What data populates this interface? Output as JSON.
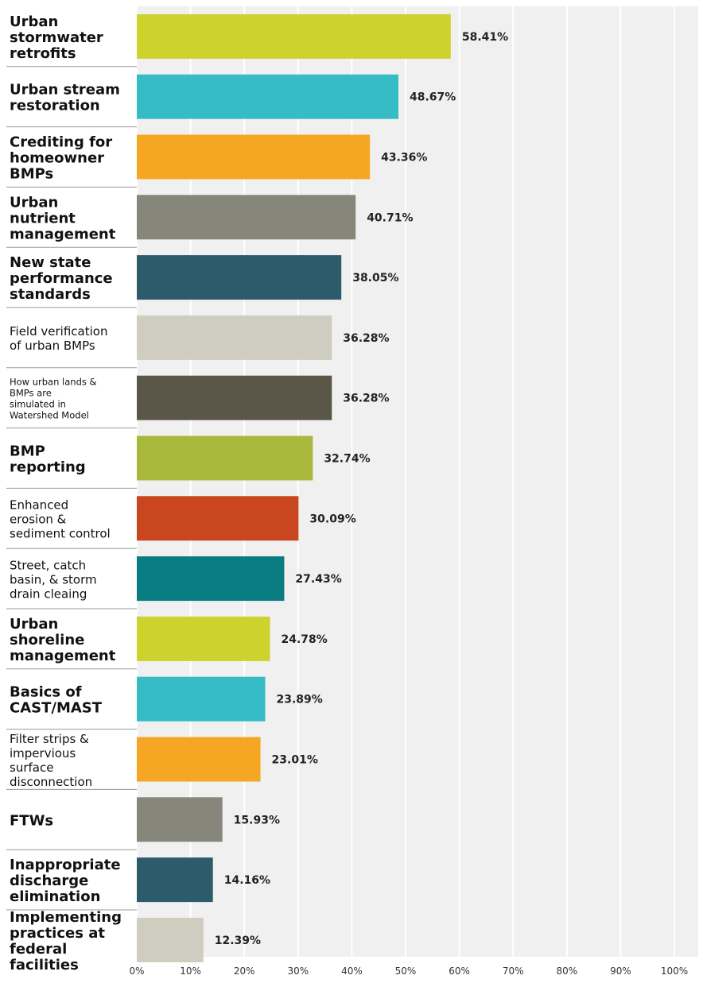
{
  "chart_data": {
    "type": "bar",
    "orientation": "horizontal",
    "categories": [
      "Urban stormwater retrofits",
      "Urban stream restoration",
      "Crediting for homeowner BMPs",
      "Urban nutrient management",
      "New state performance standards",
      "Field verification of urban BMPs",
      "How urban lands & BMPs are simulated in Watershed Model",
      "BMP reporting",
      "Enhanced erosion & sediment control",
      "Street, catch basin, & storm drain cleaing",
      "Urban shoreline management",
      "Basics of CAST/MAST",
      "Filter strips & impervious surface disconnection",
      "FTWs",
      "Inappropriate discharge elimination",
      "Implementing practices at federal facilities"
    ],
    "category_lines": [
      [
        "Urban",
        "stormwater",
        "retrofits"
      ],
      [
        "Urban stream",
        "restoration"
      ],
      [
        "Crediting for",
        "homeowner",
        "BMPs"
      ],
      [
        "Urban",
        "nutrient",
        "management"
      ],
      [
        "New state",
        "performance",
        "standards"
      ],
      [
        "Field verification",
        "of urban BMPs"
      ],
      [
        "How urban lands &",
        "BMPs are",
        "simulated in",
        "Watershed Model"
      ],
      [
        "BMP",
        "reporting"
      ],
      [
        "Enhanced",
        "erosion &",
        "sediment control"
      ],
      [
        "Street, catch",
        "basin, & storm",
        "drain cleaing"
      ],
      [
        "Urban",
        "shoreline",
        "management"
      ],
      [
        "Basics of",
        "CAST/MAST"
      ],
      [
        "Filter strips &",
        "impervious",
        "surface",
        "disconnection"
      ],
      [
        "FTWs"
      ],
      [
        "Inappropriate",
        "discharge",
        "elimination"
      ],
      [
        "Implementing",
        "practices at",
        "federal",
        "facilities"
      ]
    ],
    "label_styles": [
      "bold",
      "bold",
      "bold",
      "bold",
      "bold",
      "light",
      "tiny",
      "bold",
      "light",
      "light",
      "bold",
      "bold",
      "light",
      "bold",
      "bold",
      "bold"
    ],
    "values": [
      58.41,
      48.67,
      43.36,
      40.71,
      38.05,
      36.28,
      36.28,
      32.74,
      30.09,
      27.43,
      24.78,
      23.89,
      23.01,
      15.93,
      14.16,
      12.39
    ],
    "value_labels": [
      "58.41%",
      "48.67%",
      "43.36%",
      "40.71%",
      "38.05%",
      "36.28%",
      "36.28%",
      "32.74%",
      "30.09%",
      "27.43%",
      "24.78%",
      "23.89%",
      "23.01%",
      "15.93%",
      "14.16%",
      "12.39%"
    ],
    "colors": [
      "#cdd22c",
      "#35bcc4",
      "#f5a623",
      "#86877a",
      "#2d5b6c",
      "#cfcdc0",
      "#5b5748",
      "#a8b83a",
      "#c9461e",
      "#0a7d83",
      "#cdd22c",
      "#35bcc4",
      "#f5a623",
      "#86877a",
      "#2d5b6c",
      "#cfcdc0"
    ],
    "xticks": [
      "0%",
      "10%",
      "20%",
      "30%",
      "40%",
      "50%",
      "60%",
      "70%",
      "80%",
      "90%",
      "100%"
    ],
    "xlim": [
      0,
      100
    ],
    "grid": true,
    "grid_orientation": "vertical",
    "plot_background": "#f0f0f0",
    "title": "",
    "xlabel": "",
    "ylabel": ""
  }
}
